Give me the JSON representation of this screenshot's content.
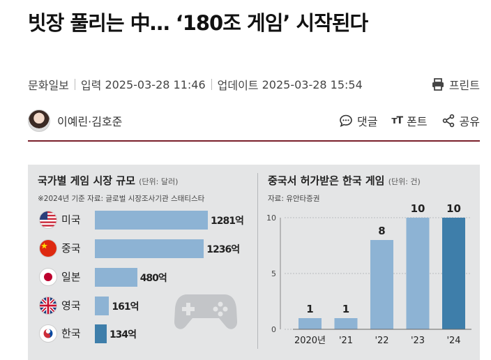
{
  "headline": "빗장 풀리는 中… ‘180조 게임’ 시작된다",
  "meta": {
    "source": "문화일보",
    "input_label": "입력",
    "input_time": "2025-03-28 11:46",
    "update_label": "업데이트",
    "update_time": "2025-03-28 15:54",
    "print_label": "프린트"
  },
  "author": {
    "name": "이예린·김호준"
  },
  "actions": {
    "comment": "댓글",
    "font_icon": "ᴛT",
    "font": "폰트",
    "share": "공유"
  },
  "colors": {
    "divider": "#7a1f2a",
    "bar_light": "#8db3d4",
    "bar_dark": "#3e7eaa",
    "panel_bg": "#e4e5e6"
  },
  "chart_data": [
    {
      "type": "bar",
      "title": "국가별 게임 시장 규모",
      "unit": "(단위: 달러)",
      "note": "※2024년 기준    자료: 글로벌 시장조사기관 스태티스타",
      "categories": [
        "미국",
        "중국",
        "일본",
        "영국",
        "한국"
      ],
      "values": [
        1281,
        1236,
        480,
        161,
        134
      ],
      "labels": [
        "1281억",
        "1236억",
        "480억",
        "161억",
        "134억"
      ],
      "orientation": "horizontal",
      "highlight": "한국"
    },
    {
      "type": "bar",
      "title": "중국서 허가받은 한국 게임",
      "unit": "(단위: 건)",
      "note": "자료: 유안타증권",
      "categories": [
        "2020년",
        "'21",
        "'22",
        "'23",
        "'24"
      ],
      "values": [
        1,
        1,
        8,
        10,
        10
      ],
      "labels": [
        "1",
        "1",
        "8",
        "10",
        "10"
      ],
      "yticks": [
        "0",
        "5",
        "10"
      ],
      "ylim": [
        0,
        10
      ],
      "highlight": "'24"
    }
  ]
}
